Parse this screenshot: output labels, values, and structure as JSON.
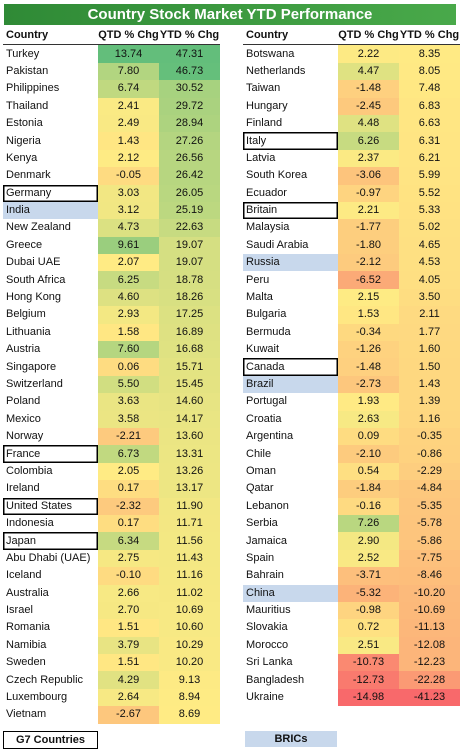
{
  "title": "Country Stock Market YTD Performance",
  "columns": {
    "country": "Country",
    "qtd": "QTD % Chg",
    "ytd": "YTD % Chg"
  },
  "legend": {
    "g7": "G7 Countries",
    "brics": "BRICs"
  },
  "colors": {
    "title_bg": "#3c9c41",
    "bric_highlight": "#c8d8ec",
    "g7_outline": "#000000",
    "scale_low": "#f8696b",
    "scale_mid": "#ffeb84",
    "scale_high": "#63be7b"
  },
  "chart_data": {
    "type": "table",
    "title": "Country Stock Market YTD Performance",
    "columns": [
      "Country",
      "QTD % Chg",
      "YTD % Chg"
    ],
    "rows": [
      {
        "country": "Turkey",
        "qtd": 13.74,
        "ytd": 47.31
      },
      {
        "country": "Pakistan",
        "qtd": 7.8,
        "ytd": 46.73
      },
      {
        "country": "Philippines",
        "qtd": 6.74,
        "ytd": 30.52
      },
      {
        "country": "Thailand",
        "qtd": 2.41,
        "ytd": 29.72
      },
      {
        "country": "Estonia",
        "qtd": 2.49,
        "ytd": 28.94
      },
      {
        "country": "Nigeria",
        "qtd": 1.43,
        "ytd": 27.26
      },
      {
        "country": "Kenya",
        "qtd": 2.12,
        "ytd": 26.56
      },
      {
        "country": "Denmark",
        "qtd": -0.05,
        "ytd": 26.42
      },
      {
        "country": "Germany",
        "qtd": 3.03,
        "ytd": 26.05,
        "group": "G7"
      },
      {
        "country": "India",
        "qtd": 3.12,
        "ytd": 25.19,
        "group": "BRIC"
      },
      {
        "country": "New Zealand",
        "qtd": 4.73,
        "ytd": 22.63
      },
      {
        "country": "Greece",
        "qtd": 9.61,
        "ytd": 19.07
      },
      {
        "country": "Dubai UAE",
        "qtd": 2.07,
        "ytd": 19.07
      },
      {
        "country": "South Africa",
        "qtd": 6.25,
        "ytd": 18.78
      },
      {
        "country": "Hong Kong",
        "qtd": 4.6,
        "ytd": 18.26
      },
      {
        "country": "Belgium",
        "qtd": 2.93,
        "ytd": 17.25
      },
      {
        "country": "Lithuania",
        "qtd": 1.58,
        "ytd": 16.89
      },
      {
        "country": "Austria",
        "qtd": 7.6,
        "ytd": 16.68
      },
      {
        "country": "Singapore",
        "qtd": 0.06,
        "ytd": 15.71
      },
      {
        "country": "Switzerland",
        "qtd": 5.5,
        "ytd": 15.45
      },
      {
        "country": "Poland",
        "qtd": 3.63,
        "ytd": 14.6
      },
      {
        "country": "Mexico",
        "qtd": 3.58,
        "ytd": 14.17
      },
      {
        "country": "Norway",
        "qtd": -2.21,
        "ytd": 13.6
      },
      {
        "country": "France",
        "qtd": 6.73,
        "ytd": 13.31,
        "group": "G7"
      },
      {
        "country": "Colombia",
        "qtd": 2.05,
        "ytd": 13.26
      },
      {
        "country": "Ireland",
        "qtd": 0.17,
        "ytd": 13.17
      },
      {
        "country": "United States",
        "qtd": -2.32,
        "ytd": 11.9,
        "group": "G7"
      },
      {
        "country": "Indonesia",
        "qtd": 0.17,
        "ytd": 11.71
      },
      {
        "country": "Japan",
        "qtd": 6.34,
        "ytd": 11.56,
        "group": "G7"
      },
      {
        "country": "Abu Dhabi (UAE)",
        "qtd": 2.75,
        "ytd": 11.43
      },
      {
        "country": "Iceland",
        "qtd": -0.1,
        "ytd": 11.16
      },
      {
        "country": "Australia",
        "qtd": 2.66,
        "ytd": 11.02
      },
      {
        "country": "Israel",
        "qtd": 2.7,
        "ytd": 10.69
      },
      {
        "country": "Romania",
        "qtd": 1.51,
        "ytd": 10.6
      },
      {
        "country": "Namibia",
        "qtd": 3.79,
        "ytd": 10.29
      },
      {
        "country": "Sweden",
        "qtd": 1.51,
        "ytd": 10.2
      },
      {
        "country": "Czech Republic",
        "qtd": 4.29,
        "ytd": 9.13
      },
      {
        "country": "Luxembourg",
        "qtd": 2.64,
        "ytd": 8.94
      },
      {
        "country": "Vietnam",
        "qtd": -2.67,
        "ytd": 8.69
      },
      {
        "country": "Botswana",
        "qtd": 2.22,
        "ytd": 8.35
      },
      {
        "country": "Netherlands",
        "qtd": 4.47,
        "ytd": 8.05
      },
      {
        "country": "Taiwan",
        "qtd": -1.48,
        "ytd": 7.48
      },
      {
        "country": "Hungary",
        "qtd": -2.45,
        "ytd": 6.83
      },
      {
        "country": "Finland",
        "qtd": 4.48,
        "ytd": 6.63
      },
      {
        "country": "Italy",
        "qtd": 6.26,
        "ytd": 6.31,
        "group": "G7"
      },
      {
        "country": "Latvia",
        "qtd": 2.37,
        "ytd": 6.21
      },
      {
        "country": "South Korea",
        "qtd": -3.06,
        "ytd": 5.99
      },
      {
        "country": "Ecuador",
        "qtd": -0.97,
        "ytd": 5.52
      },
      {
        "country": "Britain",
        "qtd": 2.21,
        "ytd": 5.33,
        "group": "G7"
      },
      {
        "country": "Malaysia",
        "qtd": -1.77,
        "ytd": 5.02
      },
      {
        "country": "Saudi Arabia",
        "qtd": -1.8,
        "ytd": 4.65
      },
      {
        "country": "Russia",
        "qtd": -2.12,
        "ytd": 4.53,
        "group": "BRIC"
      },
      {
        "country": "Peru",
        "qtd": -6.52,
        "ytd": 4.05
      },
      {
        "country": "Malta",
        "qtd": 2.15,
        "ytd": 3.5
      },
      {
        "country": "Bulgaria",
        "qtd": 1.53,
        "ytd": 2.11
      },
      {
        "country": "Bermuda",
        "qtd": -0.34,
        "ytd": 1.77
      },
      {
        "country": "Kuwait",
        "qtd": -1.26,
        "ytd": 1.6
      },
      {
        "country": "Canada",
        "qtd": -1.48,
        "ytd": 1.5,
        "group": "G7"
      },
      {
        "country": "Brazil",
        "qtd": -2.73,
        "ytd": 1.43,
        "group": "BRIC"
      },
      {
        "country": "Portugal",
        "qtd": 1.93,
        "ytd": 1.39
      },
      {
        "country": "Croatia",
        "qtd": 2.63,
        "ytd": 1.16
      },
      {
        "country": "Argentina",
        "qtd": 0.09,
        "ytd": -0.35
      },
      {
        "country": "Chile",
        "qtd": -2.1,
        "ytd": -0.86
      },
      {
        "country": "Oman",
        "qtd": 0.54,
        "ytd": -2.29
      },
      {
        "country": "Qatar",
        "qtd": -1.84,
        "ytd": -4.84
      },
      {
        "country": "Lebanon",
        "qtd": -0.16,
        "ytd": -5.35
      },
      {
        "country": "Serbia",
        "qtd": 7.26,
        "ytd": -5.78
      },
      {
        "country": "Jamaica",
        "qtd": 2.9,
        "ytd": -5.86
      },
      {
        "country": "Spain",
        "qtd": 2.52,
        "ytd": -7.75
      },
      {
        "country": "Bahrain",
        "qtd": -3.71,
        "ytd": -8.46
      },
      {
        "country": "China",
        "qtd": -5.32,
        "ytd": -10.2,
        "group": "BRIC"
      },
      {
        "country": "Mauritius",
        "qtd": -0.98,
        "ytd": -10.69
      },
      {
        "country": "Slovakia",
        "qtd": 0.72,
        "ytd": -11.13
      },
      {
        "country": "Morocco",
        "qtd": 2.51,
        "ytd": -12.08
      },
      {
        "country": "Sri Lanka",
        "qtd": -10.73,
        "ytd": -12.23
      },
      {
        "country": "Bangladesh",
        "qtd": -12.73,
        "ytd": -22.28
      },
      {
        "country": "Ukraine",
        "qtd": -14.98,
        "ytd": -41.23
      }
    ]
  }
}
